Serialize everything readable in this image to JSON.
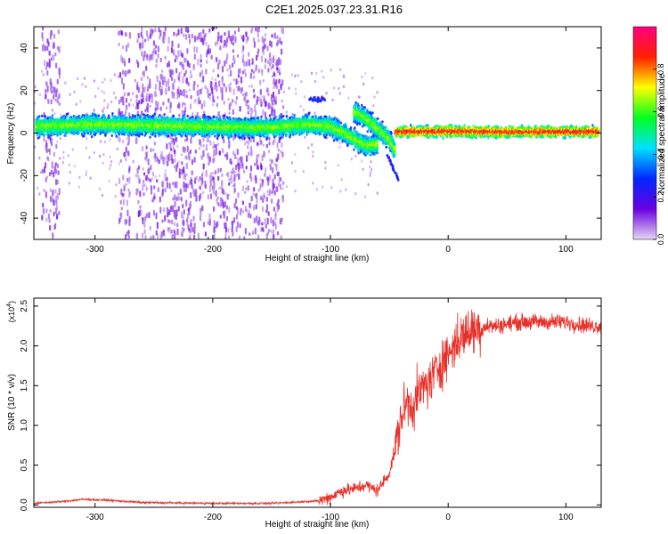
{
  "title": "C2E1.2025.037.23.31.R16",
  "colors": {
    "snr_line": "#e8302a",
    "axis": "#000000"
  },
  "chart_data": [
    {
      "type": "heatmap",
      "xlabel": "Height of straight line (km)",
      "ylabel": "Frequency (Hz)",
      "xlim": [
        -352,
        130
      ],
      "ylim": [
        -50,
        50
      ],
      "x_ticks": [
        -300,
        -200,
        -100,
        0,
        100
      ],
      "y_ticks": [
        -40,
        -20,
        0,
        20,
        40
      ],
      "colorbar": {
        "label": "Normalized spectral amplitude",
        "range": [
          0,
          1
        ],
        "ticks": [
          0.0,
          0.2,
          0.4,
          0.6,
          0.8
        ],
        "tick_labels": [
          "0.0",
          "0.2",
          "0.4",
          "0.6",
          "0.8"
        ],
        "colormap": [
          "#e6d6f5",
          "#6a00e0",
          "#0028ff",
          "#00e0ff",
          "#00ff20",
          "#ffff00",
          "#ff2000",
          "#ff0080"
        ]
      },
      "ridges": [
        {
          "x": [
            -350,
            -300,
            -250,
            -200,
            -150,
            -120,
            -100,
            -85,
            -70,
            -60
          ],
          "y": [
            3,
            4,
            3.5,
            3,
            2.5,
            4,
            3,
            -1,
            -6,
            -5
          ]
        },
        {
          "x": [
            -80,
            -70,
            -60,
            -50,
            -45
          ],
          "y": [
            10,
            7,
            2,
            -3,
            -8
          ]
        },
        {
          "x": [
            -45,
            0,
            50,
            100,
            128
          ],
          "y": [
            0.5,
            0.8,
            0.5,
            0.6,
            0.5
          ]
        }
      ],
      "noise_columns_x": [
        [
          -345,
          -330
        ],
        [
          -280,
          -270
        ],
        [
          -265,
          -140
        ]
      ]
    },
    {
      "type": "line",
      "xlabel": "Height of straight line (km)",
      "ylabel": "SNR (10 * v/v)",
      "y_multiplier": "(x10",
      "y_multiplier_exp": "4",
      "y_multiplier_close": ")",
      "xlim": [
        -352,
        130
      ],
      "ylim": [
        -0.03,
        2.6
      ],
      "x_ticks": [
        -300,
        -200,
        -100,
        0,
        100
      ],
      "y_ticks": [
        0.0,
        0.5,
        1.0,
        1.5,
        2.0,
        2.5
      ],
      "y_tick_labels": [
        "0.0",
        "0.5",
        "1.0",
        "1.5",
        "2.0",
        "2.5"
      ],
      "trend": {
        "x": [
          -352,
          -330,
          -310,
          -290,
          -260,
          -200,
          -150,
          -110,
          -100,
          -90,
          -80,
          -70,
          -60,
          -50,
          -45,
          -40,
          -35,
          -30,
          -25,
          -20,
          -15,
          -10,
          -5,
          0,
          10,
          20,
          30,
          40,
          60,
          80,
          100,
          120,
          130
        ],
        "y": [
          0.02,
          0.04,
          0.07,
          0.06,
          0.03,
          0.02,
          0.02,
          0.05,
          0.1,
          0.18,
          0.2,
          0.25,
          0.18,
          0.4,
          0.7,
          1.1,
          1.3,
          1.25,
          1.4,
          1.5,
          1.55,
          1.7,
          1.8,
          1.9,
          2.1,
          2.2,
          2.25,
          2.25,
          2.3,
          2.3,
          2.3,
          2.25,
          2.25
        ]
      }
    }
  ]
}
